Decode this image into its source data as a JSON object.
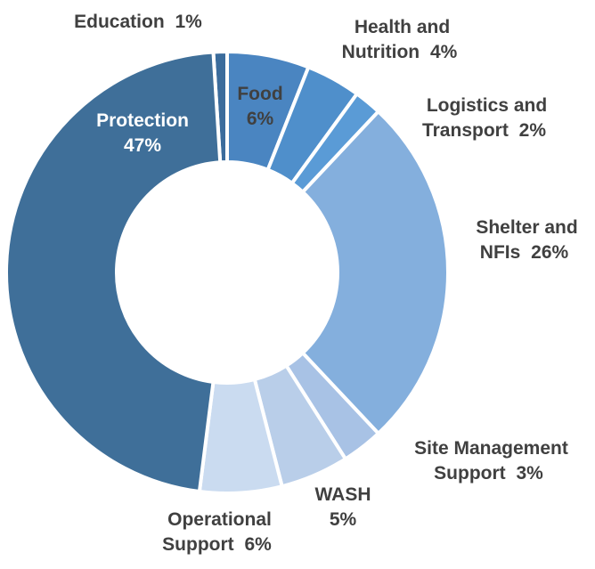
{
  "chart_data": {
    "type": "donut",
    "categories": [
      "Education",
      "Food",
      "Health and Nutrition",
      "Logistics and Transport",
      "Shelter and NFIs",
      "Site Management Support",
      "WASH",
      "Operational Support",
      "Protection"
    ],
    "values": [
      1,
      6,
      4,
      2,
      26,
      3,
      5,
      6,
      47
    ],
    "value_labels": [
      "1%",
      "6%",
      "4%",
      "2%",
      "26%",
      "3%",
      "5%",
      "6%",
      "47%"
    ],
    "colors": [
      "#3b6c9c",
      "#4a85c1",
      "#4f8fcb",
      "#5a9bd6",
      "#84afdd",
      "#a8c2e5",
      "#b9cee9",
      "#cadbf0",
      "#3f6f99"
    ]
  }
}
